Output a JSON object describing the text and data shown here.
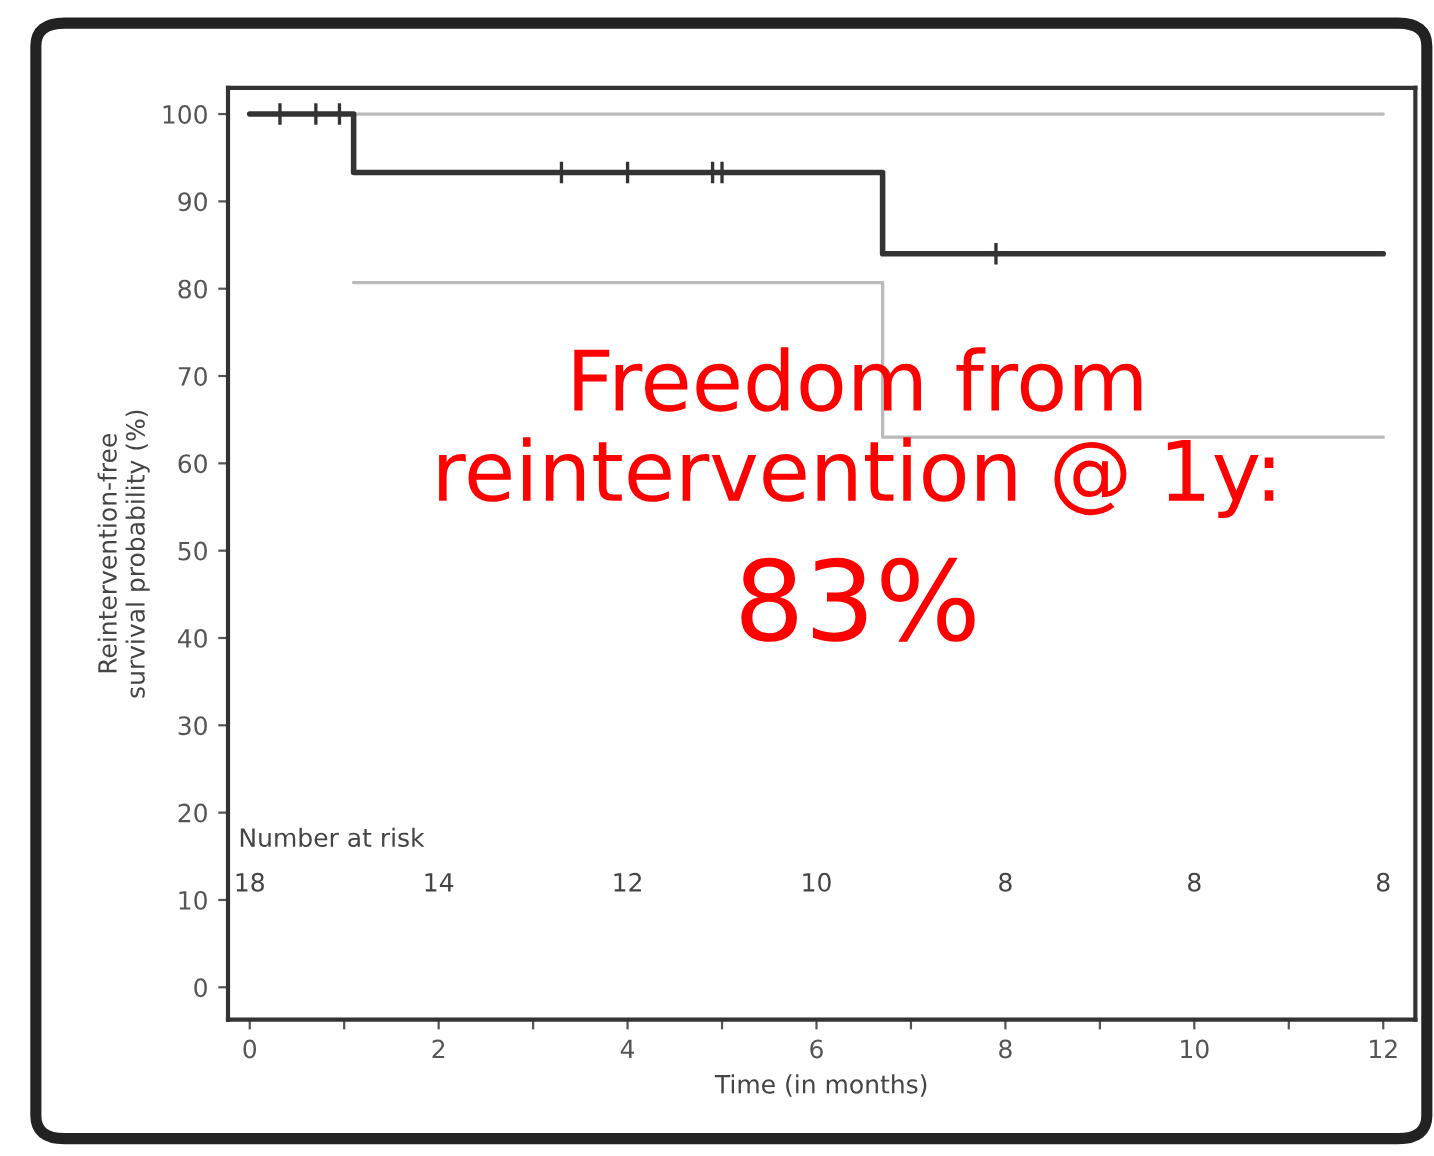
{
  "chart_data": {
    "type": "step",
    "xlabel": "Time (in months)",
    "ylabel": "Reintervention-free\nsurvival probability (%)",
    "xlim": [
      -0.23,
      12.34
    ],
    "ylim": [
      -3.7,
      103
    ],
    "xticks": [
      0,
      {
        "value": 1,
        "label": null
      },
      2,
      {
        "value": 3,
        "label": null
      },
      4,
      {
        "value": 5,
        "label": null
      },
      6,
      {
        "value": 7,
        "label": null
      },
      8,
      {
        "value": 9,
        "label": null
      },
      10,
      {
        "value": 11,
        "label": null
      },
      12
    ],
    "yticks": [
      0,
      10,
      20,
      30,
      40,
      50,
      60,
      70,
      80,
      90,
      100
    ],
    "grid": false,
    "legend": false,
    "line_style": "solid",
    "series": [
      {
        "color": "#bbbbbb",
        "x": [
          1.1,
          12
        ],
        "values": [
          100,
          100
        ]
      },
      {
        "color": "#bbbbbb",
        "x": [
          1.1,
          6.7,
          12
        ],
        "values": [
          80.7,
          63,
          63
        ]
      },
      {
        "color": "#333333",
        "x": [
          0,
          1.1,
          6.7,
          12
        ],
        "values": [
          100,
          93.3,
          84,
          84
        ]
      },
      {
        "type": "scatter",
        "marker": "cross",
        "color": "#333333",
        "x": [
          0.32,
          0.7,
          0.95,
          3.3,
          4.0,
          4.9,
          5.0,
          7.9
        ],
        "values": [
          100,
          100,
          100,
          93.3,
          93.3,
          93.3,
          93.3,
          84
        ]
      }
    ],
    "annotations": [
      "Number at risk",
      "18",
      "14",
      "12",
      "10",
      "8",
      "8",
      "8",
      "Freedom from\nreintervention @ 1y:",
      "83%"
    ]
  }
}
